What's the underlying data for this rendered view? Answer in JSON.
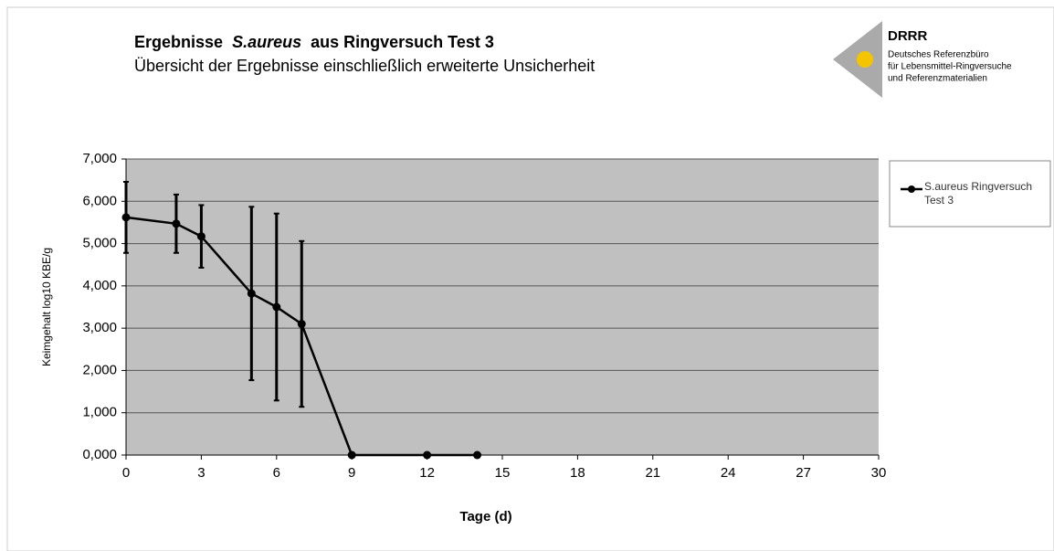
{
  "chart_data": {
    "type": "line",
    "title": [
      "Ergebnisse",
      "S.aureus",
      "aus Ringversuch Test 3"
    ],
    "subtitle": "Übersicht der Ergebnisse einschließlich erweiterte Unsicherheit",
    "logo": {
      "name": "DRRR",
      "lines": [
        "Deutsches Referenzbüro",
        "für Lebensmittel-Ringversuche",
        "und Referenzmaterialien"
      ]
    },
    "x_label": "Tage (d)",
    "y_label": "Keimgehalt log10 KBE/g",
    "x": [
      0,
      2,
      3,
      5,
      6,
      7,
      9,
      12,
      14
    ],
    "series": [
      {
        "name": "S.aureus Ringversuch Test 3",
        "color": "#000000",
        "values": [
          5.62,
          5.47,
          5.17,
          3.82,
          3.5,
          3.1,
          0,
          0,
          0
        ],
        "errors": [
          0.84,
          0.69,
          0.74,
          2.05,
          2.21,
          1.96,
          null,
          null,
          null
        ]
      }
    ],
    "xlim": [
      0,
      30
    ],
    "xticks": [
      0,
      3,
      6,
      9,
      12,
      15,
      18,
      21,
      24,
      27,
      30
    ],
    "ylim": [
      0,
      7
    ],
    "yticks": [
      {
        "value": 0,
        "label": "0,000"
      },
      {
        "value": 1,
        "label": "1,000"
      },
      {
        "value": 2,
        "label": "2,000"
      },
      {
        "value": 3,
        "label": "3,000"
      },
      {
        "value": 4,
        "label": "4,000"
      },
      {
        "value": 5,
        "label": "5,000"
      },
      {
        "value": 6,
        "label": "6,000"
      },
      {
        "value": 7,
        "label": "7,000"
      }
    ],
    "grid": true,
    "legend": "right"
  }
}
